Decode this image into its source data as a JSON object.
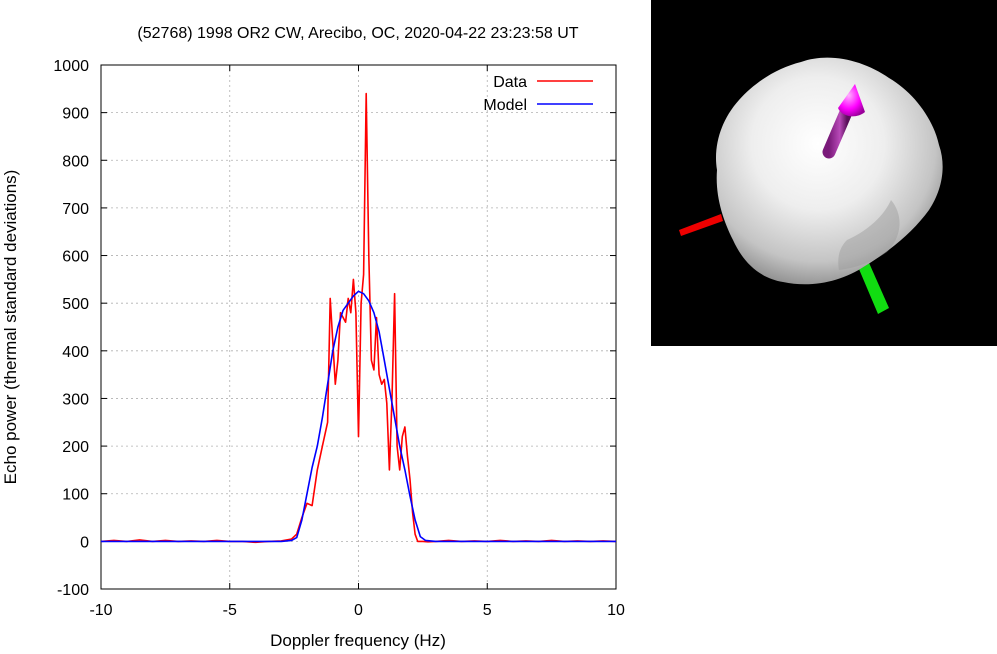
{
  "chart_data": {
    "type": "line",
    "title": "(52768) 1998 OR2 CW, Arecibo, OC, 2020-04-22 23:23:58 UT",
    "xlabel": "Doppler frequency (Hz)",
    "ylabel": "Echo power (thermal standard deviations)",
    "xlim": [
      -10,
      10
    ],
    "ylim": [
      -100,
      1000
    ],
    "xticks": [
      -10,
      -5,
      0,
      5,
      10
    ],
    "yticks": [
      -100,
      0,
      100,
      200,
      300,
      400,
      500,
      600,
      700,
      800,
      900,
      1000
    ],
    "grid": true,
    "legend_position": "top-right",
    "series": [
      {
        "name": "Data",
        "color": "#ff0000",
        "x": [
          -10,
          -9.5,
          -9,
          -8.5,
          -8,
          -7.5,
          -7,
          -6.5,
          -6,
          -5.5,
          -5,
          -4.5,
          -4,
          -3.5,
          -3,
          -2.6,
          -2.4,
          -2.2,
          -2.0,
          -1.8,
          -1.6,
          -1.4,
          -1.2,
          -1.1,
          -1.0,
          -0.9,
          -0.8,
          -0.7,
          -0.6,
          -0.5,
          -0.4,
          -0.3,
          -0.2,
          -0.1,
          0.0,
          0.1,
          0.2,
          0.3,
          0.4,
          0.5,
          0.6,
          0.7,
          0.8,
          0.9,
          1.0,
          1.1,
          1.2,
          1.3,
          1.4,
          1.5,
          1.6,
          1.7,
          1.8,
          1.9,
          2.0,
          2.1,
          2.2,
          2.3,
          2.4,
          2.5,
          2.7,
          3,
          3.5,
          4,
          4.5,
          5,
          5.5,
          6,
          6.5,
          7,
          7.5,
          8,
          8.5,
          9,
          9.5,
          10
        ],
        "y": [
          0,
          2,
          0,
          3,
          0,
          2,
          0,
          1,
          0,
          2,
          0,
          0,
          -2,
          0,
          1,
          5,
          15,
          50,
          80,
          75,
          150,
          200,
          250,
          510,
          420,
          330,
          380,
          480,
          470,
          460,
          510,
          480,
          550,
          480,
          220,
          500,
          560,
          940,
          600,
          380,
          360,
          470,
          350,
          330,
          340,
          290,
          150,
          300,
          520,
          200,
          150,
          220,
          240,
          180,
          130,
          60,
          15,
          0,
          0,
          0,
          -1,
          0,
          2,
          0,
          1,
          0,
          2,
          0,
          1,
          0,
          2,
          0,
          1,
          0,
          1,
          0
        ]
      },
      {
        "name": "Model",
        "color": "#0000ff",
        "x": [
          -10,
          -9,
          -8,
          -7,
          -6,
          -5,
          -4,
          -3,
          -2.6,
          -2.4,
          -2.2,
          -2.0,
          -1.8,
          -1.6,
          -1.4,
          -1.2,
          -1.0,
          -0.8,
          -0.6,
          -0.4,
          -0.2,
          0.0,
          0.2,
          0.4,
          0.6,
          0.8,
          1.0,
          1.2,
          1.4,
          1.6,
          1.8,
          2.0,
          2.2,
          2.4,
          2.6,
          3,
          4,
          5,
          6,
          7,
          8,
          9,
          10
        ],
        "y": [
          0,
          0,
          0,
          0,
          0,
          0,
          0,
          0,
          2,
          8,
          45,
          100,
          155,
          200,
          260,
          330,
          400,
          450,
          485,
          500,
          515,
          525,
          520,
          505,
          480,
          440,
          380,
          320,
          260,
          200,
          150,
          95,
          45,
          10,
          2,
          0,
          0,
          0,
          0,
          0,
          0,
          0,
          0
        ]
      }
    ]
  },
  "render_panel": {
    "background": "#000000",
    "body_color": "#e6e6e6",
    "axes": [
      {
        "name": "red-axis",
        "color": "#ff0000"
      },
      {
        "name": "green-axis",
        "color": "#00ee00"
      },
      {
        "name": "magenta-spin-axis",
        "color": "#ff00ff"
      }
    ]
  }
}
